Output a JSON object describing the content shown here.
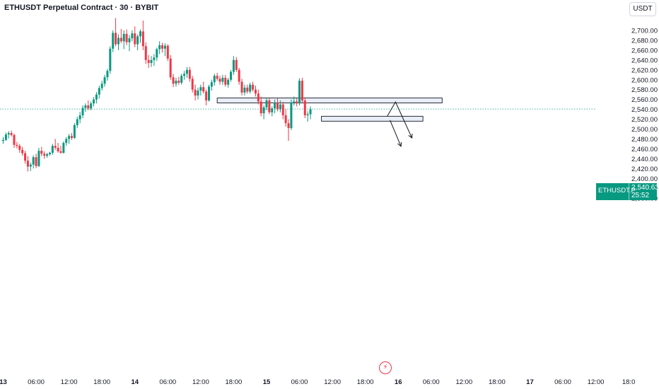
{
  "header": {
    "title": "ETHUSDT Perpetual Contract · 30 · BYBIT"
  },
  "currency_label": "USDT",
  "last_price": {
    "symbol": "ETHUSDT.P",
    "value": "2,540.63",
    "countdown": "25:52"
  },
  "colors": {
    "up": "#089981",
    "down": "#f23645",
    "zone_fill": "#e8edf7",
    "zone_border": "#131722",
    "last_line": "#089981"
  },
  "icons": {
    "event_marker": "lightning-icon"
  },
  "chart_data": {
    "type": "candlestick",
    "title": "ETHUSDT Perpetual Contract · 30 · BYBIT",
    "interval": "30",
    "ylim": [
      2350,
      2725
    ],
    "y_ticks": [
      {
        "value": 2360,
        "label": "2,360.00"
      },
      {
        "value": 2380,
        "label": "2,380.00"
      },
      {
        "value": 2400,
        "label": "2,400.00"
      },
      {
        "value": 2420,
        "label": "2,420.00"
      },
      {
        "value": 2440,
        "label": "2,440.00"
      },
      {
        "value": 2460,
        "label": "2,460.00"
      },
      {
        "value": 2480,
        "label": "2,480.00"
      },
      {
        "value": 2500,
        "label": "2,500.00"
      },
      {
        "value": 2520,
        "label": "2,520.00"
      },
      {
        "value": 2540,
        "label": "2,540.00"
      },
      {
        "value": 2560,
        "label": "2,560.00"
      },
      {
        "value": 2580,
        "label": "2,580.00"
      },
      {
        "value": 2600,
        "label": "2,600.00"
      },
      {
        "value": 2620,
        "label": "2,620.00"
      },
      {
        "value": 2640,
        "label": "2,640.00"
      },
      {
        "value": 2660,
        "label": "2,660.00"
      },
      {
        "value": 2680,
        "label": "2,680.00"
      },
      {
        "value": 2700,
        "label": "2,700.00"
      }
    ],
    "x_ticks": [
      {
        "bar": 0,
        "label": "13",
        "bold": true
      },
      {
        "bar": 12,
        "label": "06:00",
        "bold": false
      },
      {
        "bar": 24,
        "label": "12:00",
        "bold": false
      },
      {
        "bar": 36,
        "label": "18:00",
        "bold": false
      },
      {
        "bar": 48,
        "label": "14",
        "bold": true
      },
      {
        "bar": 60,
        "label": "06:00",
        "bold": false
      },
      {
        "bar": 72,
        "label": "12:00",
        "bold": false
      },
      {
        "bar": 84,
        "label": "18:00",
        "bold": false
      },
      {
        "bar": 96,
        "label": "15",
        "bold": true
      },
      {
        "bar": 108,
        "label": "06:00",
        "bold": false
      },
      {
        "bar": 120,
        "label": "12:00",
        "bold": false
      },
      {
        "bar": 132,
        "label": "18:00",
        "bold": false
      },
      {
        "bar": 144,
        "label": "16",
        "bold": true
      },
      {
        "bar": 156,
        "label": "06:00",
        "bold": false
      },
      {
        "bar": 168,
        "label": "12:00",
        "bold": false
      },
      {
        "bar": 180,
        "label": "18:00",
        "bold": false
      },
      {
        "bar": 192,
        "label": "17",
        "bold": true
      },
      {
        "bar": 204,
        "label": "06:00",
        "bold": false
      },
      {
        "bar": 216,
        "label": "12:00",
        "bold": false
      },
      {
        "bar": 228,
        "label": "18:0",
        "bold": false
      }
    ],
    "last_price": 2540.63,
    "zones": [
      {
        "from_bar": 78,
        "to_bar": 160,
        "low": 2553,
        "high": 2563
      },
      {
        "from_bar": 116,
        "to_bar": 153,
        "low": 2516,
        "high": 2526
      }
    ],
    "projection_paths": [
      [
        [
          140,
          2526
        ],
        [
          143,
          2555
        ],
        [
          149,
          2482
        ]
      ],
      [
        [
          141,
          2518
        ],
        [
          145,
          2465
        ]
      ]
    ],
    "candles": [
      {
        "o": 2476,
        "h": 2484,
        "l": 2470,
        "c": 2478
      },
      {
        "o": 2478,
        "h": 2493,
        "l": 2476,
        "c": 2489
      },
      {
        "o": 2489,
        "h": 2496,
        "l": 2481,
        "c": 2492
      },
      {
        "o": 2492,
        "h": 2497,
        "l": 2485,
        "c": 2488
      },
      {
        "o": 2488,
        "h": 2491,
        "l": 2462,
        "c": 2468
      },
      {
        "o": 2468,
        "h": 2474,
        "l": 2461,
        "c": 2466
      },
      {
        "o": 2466,
        "h": 2470,
        "l": 2452,
        "c": 2458
      },
      {
        "o": 2458,
        "h": 2464,
        "l": 2446,
        "c": 2451
      },
      {
        "o": 2451,
        "h": 2456,
        "l": 2430,
        "c": 2436
      },
      {
        "o": 2436,
        "h": 2445,
        "l": 2414,
        "c": 2424
      },
      {
        "o": 2424,
        "h": 2432,
        "l": 2415,
        "c": 2428
      },
      {
        "o": 2428,
        "h": 2447,
        "l": 2420,
        "c": 2443
      },
      {
        "o": 2443,
        "h": 2450,
        "l": 2421,
        "c": 2425
      },
      {
        "o": 2425,
        "h": 2462,
        "l": 2423,
        "c": 2456
      },
      {
        "o": 2456,
        "h": 2464,
        "l": 2445,
        "c": 2450
      },
      {
        "o": 2450,
        "h": 2455,
        "l": 2440,
        "c": 2446
      },
      {
        "o": 2446,
        "h": 2452,
        "l": 2442,
        "c": 2449
      },
      {
        "o": 2449,
        "h": 2454,
        "l": 2446,
        "c": 2452
      },
      {
        "o": 2452,
        "h": 2470,
        "l": 2448,
        "c": 2466
      },
      {
        "o": 2466,
        "h": 2480,
        "l": 2458,
        "c": 2462
      },
      {
        "o": 2462,
        "h": 2472,
        "l": 2452,
        "c": 2455
      },
      {
        "o": 2455,
        "h": 2466,
        "l": 2450,
        "c": 2452
      },
      {
        "o": 2452,
        "h": 2475,
        "l": 2450,
        "c": 2472
      },
      {
        "o": 2472,
        "h": 2484,
        "l": 2466,
        "c": 2480
      },
      {
        "o": 2480,
        "h": 2490,
        "l": 2470,
        "c": 2486
      },
      {
        "o": 2486,
        "h": 2492,
        "l": 2478,
        "c": 2482
      },
      {
        "o": 2482,
        "h": 2512,
        "l": 2480,
        "c": 2508
      },
      {
        "o": 2508,
        "h": 2525,
        "l": 2502,
        "c": 2520
      },
      {
        "o": 2520,
        "h": 2535,
        "l": 2512,
        "c": 2528
      },
      {
        "o": 2528,
        "h": 2548,
        "l": 2522,
        "c": 2543
      },
      {
        "o": 2543,
        "h": 2552,
        "l": 2535,
        "c": 2548
      },
      {
        "o": 2548,
        "h": 2558,
        "l": 2538,
        "c": 2542
      },
      {
        "o": 2542,
        "h": 2556,
        "l": 2538,
        "c": 2552
      },
      {
        "o": 2552,
        "h": 2565,
        "l": 2546,
        "c": 2560
      },
      {
        "o": 2560,
        "h": 2575,
        "l": 2552,
        "c": 2570
      },
      {
        "o": 2570,
        "h": 2588,
        "l": 2562,
        "c": 2583
      },
      {
        "o": 2583,
        "h": 2598,
        "l": 2578,
        "c": 2592
      },
      {
        "o": 2592,
        "h": 2610,
        "l": 2586,
        "c": 2605
      },
      {
        "o": 2605,
        "h": 2622,
        "l": 2598,
        "c": 2618
      },
      {
        "o": 2618,
        "h": 2668,
        "l": 2612,
        "c": 2663
      },
      {
        "o": 2663,
        "h": 2700,
        "l": 2656,
        "c": 2695
      },
      {
        "o": 2695,
        "h": 2725,
        "l": 2668,
        "c": 2672
      },
      {
        "o": 2672,
        "h": 2692,
        "l": 2660,
        "c": 2685
      },
      {
        "o": 2685,
        "h": 2703,
        "l": 2674,
        "c": 2678
      },
      {
        "o": 2678,
        "h": 2700,
        "l": 2662,
        "c": 2693
      },
      {
        "o": 2693,
        "h": 2702,
        "l": 2670,
        "c": 2676
      },
      {
        "o": 2676,
        "h": 2690,
        "l": 2658,
        "c": 2684
      },
      {
        "o": 2684,
        "h": 2700,
        "l": 2678,
        "c": 2694
      },
      {
        "o": 2694,
        "h": 2708,
        "l": 2666,
        "c": 2672
      },
      {
        "o": 2672,
        "h": 2692,
        "l": 2660,
        "c": 2688
      },
      {
        "o": 2688,
        "h": 2702,
        "l": 2675,
        "c": 2698
      },
      {
        "o": 2698,
        "h": 2720,
        "l": 2660,
        "c": 2668
      },
      {
        "o": 2668,
        "h": 2676,
        "l": 2632,
        "c": 2640
      },
      {
        "o": 2640,
        "h": 2650,
        "l": 2624,
        "c": 2634
      },
      {
        "o": 2634,
        "h": 2648,
        "l": 2626,
        "c": 2640
      },
      {
        "o": 2640,
        "h": 2652,
        "l": 2628,
        "c": 2645
      },
      {
        "o": 2645,
        "h": 2665,
        "l": 2638,
        "c": 2662
      },
      {
        "o": 2662,
        "h": 2678,
        "l": 2652,
        "c": 2670
      },
      {
        "o": 2670,
        "h": 2675,
        "l": 2655,
        "c": 2663
      },
      {
        "o": 2663,
        "h": 2674,
        "l": 2648,
        "c": 2669
      },
      {
        "o": 2669,
        "h": 2672,
        "l": 2638,
        "c": 2643
      },
      {
        "o": 2643,
        "h": 2650,
        "l": 2600,
        "c": 2605
      },
      {
        "o": 2605,
        "h": 2612,
        "l": 2585,
        "c": 2592
      },
      {
        "o": 2592,
        "h": 2604,
        "l": 2586,
        "c": 2598
      },
      {
        "o": 2598,
        "h": 2606,
        "l": 2590,
        "c": 2594
      },
      {
        "o": 2594,
        "h": 2612,
        "l": 2590,
        "c": 2608
      },
      {
        "o": 2608,
        "h": 2618,
        "l": 2600,
        "c": 2612
      },
      {
        "o": 2612,
        "h": 2626,
        "l": 2604,
        "c": 2620
      },
      {
        "o": 2620,
        "h": 2626,
        "l": 2596,
        "c": 2602
      },
      {
        "o": 2602,
        "h": 2608,
        "l": 2574,
        "c": 2580
      },
      {
        "o": 2580,
        "h": 2590,
        "l": 2558,
        "c": 2568
      },
      {
        "o": 2568,
        "h": 2584,
        "l": 2560,
        "c": 2578
      },
      {
        "o": 2578,
        "h": 2590,
        "l": 2568,
        "c": 2585
      },
      {
        "o": 2585,
        "h": 2596,
        "l": 2572,
        "c": 2576
      },
      {
        "o": 2576,
        "h": 2580,
        "l": 2548,
        "c": 2558
      },
      {
        "o": 2558,
        "h": 2590,
        "l": 2556,
        "c": 2586
      },
      {
        "o": 2586,
        "h": 2600,
        "l": 2578,
        "c": 2595
      },
      {
        "o": 2595,
        "h": 2612,
        "l": 2588,
        "c": 2608
      },
      {
        "o": 2608,
        "h": 2614,
        "l": 2598,
        "c": 2602
      },
      {
        "o": 2602,
        "h": 2608,
        "l": 2590,
        "c": 2596
      },
      {
        "o": 2596,
        "h": 2610,
        "l": 2590,
        "c": 2604
      },
      {
        "o": 2604,
        "h": 2610,
        "l": 2586,
        "c": 2590
      },
      {
        "o": 2590,
        "h": 2604,
        "l": 2584,
        "c": 2600
      },
      {
        "o": 2600,
        "h": 2620,
        "l": 2596,
        "c": 2616
      },
      {
        "o": 2616,
        "h": 2648,
        "l": 2610,
        "c": 2640
      },
      {
        "o": 2640,
        "h": 2646,
        "l": 2616,
        "c": 2620
      },
      {
        "o": 2620,
        "h": 2624,
        "l": 2590,
        "c": 2596
      },
      {
        "o": 2596,
        "h": 2602,
        "l": 2568,
        "c": 2574
      },
      {
        "o": 2574,
        "h": 2590,
        "l": 2568,
        "c": 2584
      },
      {
        "o": 2584,
        "h": 2590,
        "l": 2572,
        "c": 2576
      },
      {
        "o": 2576,
        "h": 2594,
        "l": 2572,
        "c": 2590
      },
      {
        "o": 2590,
        "h": 2596,
        "l": 2576,
        "c": 2580
      },
      {
        "o": 2580,
        "h": 2588,
        "l": 2566,
        "c": 2572
      },
      {
        "o": 2572,
        "h": 2580,
        "l": 2550,
        "c": 2556
      },
      {
        "o": 2556,
        "h": 2566,
        "l": 2526,
        "c": 2532
      },
      {
        "o": 2532,
        "h": 2548,
        "l": 2520,
        "c": 2544
      },
      {
        "o": 2544,
        "h": 2562,
        "l": 2538,
        "c": 2558
      },
      {
        "o": 2558,
        "h": 2562,
        "l": 2530,
        "c": 2534
      },
      {
        "o": 2534,
        "h": 2546,
        "l": 2526,
        "c": 2542
      },
      {
        "o": 2542,
        "h": 2560,
        "l": 2532,
        "c": 2554
      },
      {
        "o": 2554,
        "h": 2562,
        "l": 2536,
        "c": 2540
      },
      {
        "o": 2540,
        "h": 2558,
        "l": 2534,
        "c": 2550
      },
      {
        "o": 2550,
        "h": 2555,
        "l": 2520,
        "c": 2528
      },
      {
        "o": 2528,
        "h": 2540,
        "l": 2505,
        "c": 2512
      },
      {
        "o": 2512,
        "h": 2520,
        "l": 2476,
        "c": 2502
      },
      {
        "o": 2502,
        "h": 2560,
        "l": 2498,
        "c": 2554
      },
      {
        "o": 2554,
        "h": 2566,
        "l": 2548,
        "c": 2556
      },
      {
        "o": 2556,
        "h": 2562,
        "l": 2546,
        "c": 2552
      },
      {
        "o": 2552,
        "h": 2603,
        "l": 2548,
        "c": 2598
      },
      {
        "o": 2598,
        "h": 2604,
        "l": 2552,
        "c": 2558
      },
      {
        "o": 2558,
        "h": 2562,
        "l": 2522,
        "c": 2528
      },
      {
        "o": 2528,
        "h": 2536,
        "l": 2515,
        "c": 2530
      },
      {
        "o": 2530,
        "h": 2546,
        "l": 2520,
        "c": 2540
      }
    ]
  }
}
